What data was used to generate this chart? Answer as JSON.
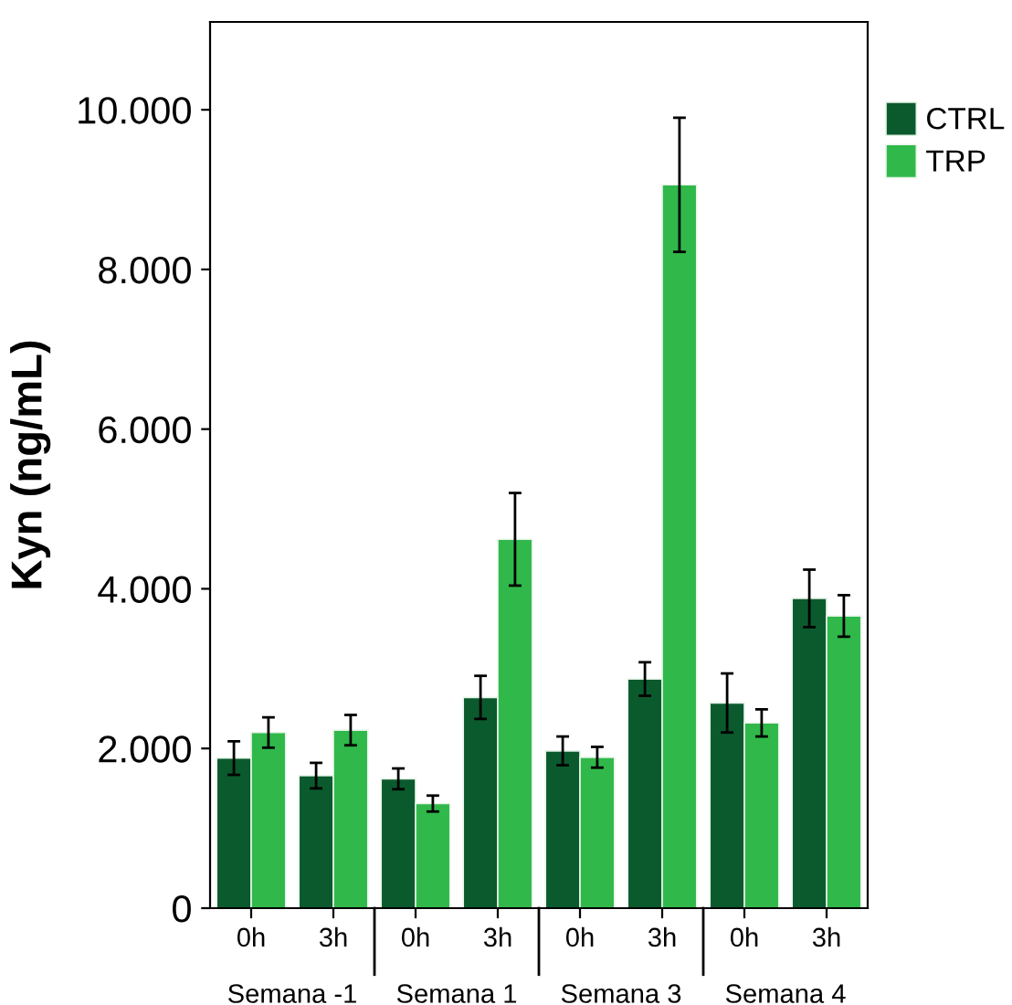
{
  "chart_data": {
    "type": "bar",
    "ylabel": "Kyn (ng/mL)",
    "categories": [
      "0h",
      "3h",
      "0h",
      "3h",
      "0h",
      "3h",
      "0h",
      "3h"
    ],
    "annotations": [
      "Semana -1",
      "Semana 1",
      "Semana 3",
      "Semana 4"
    ],
    "series": [
      {
        "name": "CTRL",
        "color": "#0b5a2e",
        "values": [
          1880,
          1660,
          1620,
          2640,
          1970,
          2870,
          2570,
          3880
        ],
        "errors": [
          210,
          160,
          130,
          270,
          180,
          210,
          370,
          360
        ]
      },
      {
        "name": "TRP",
        "color": "#30b84a",
        "values": [
          2200,
          2230,
          1310,
          4620,
          1890,
          9060,
          2320,
          3660
        ],
        "errors": [
          190,
          190,
          100,
          580,
          130,
          840,
          170,
          260
        ]
      }
    ],
    "ylim": [
      0,
      11100
    ],
    "yticks": [
      {
        "value": 0,
        "label": "0"
      },
      {
        "value": 2000,
        "label": "2.000"
      },
      {
        "value": 4000,
        "label": "4.000"
      },
      {
        "value": 6000,
        "label": "6.000"
      },
      {
        "value": 8000,
        "label": "8.000"
      },
      {
        "value": 10000,
        "label": "10.000"
      }
    ],
    "grid": false,
    "legend": "top right"
  }
}
